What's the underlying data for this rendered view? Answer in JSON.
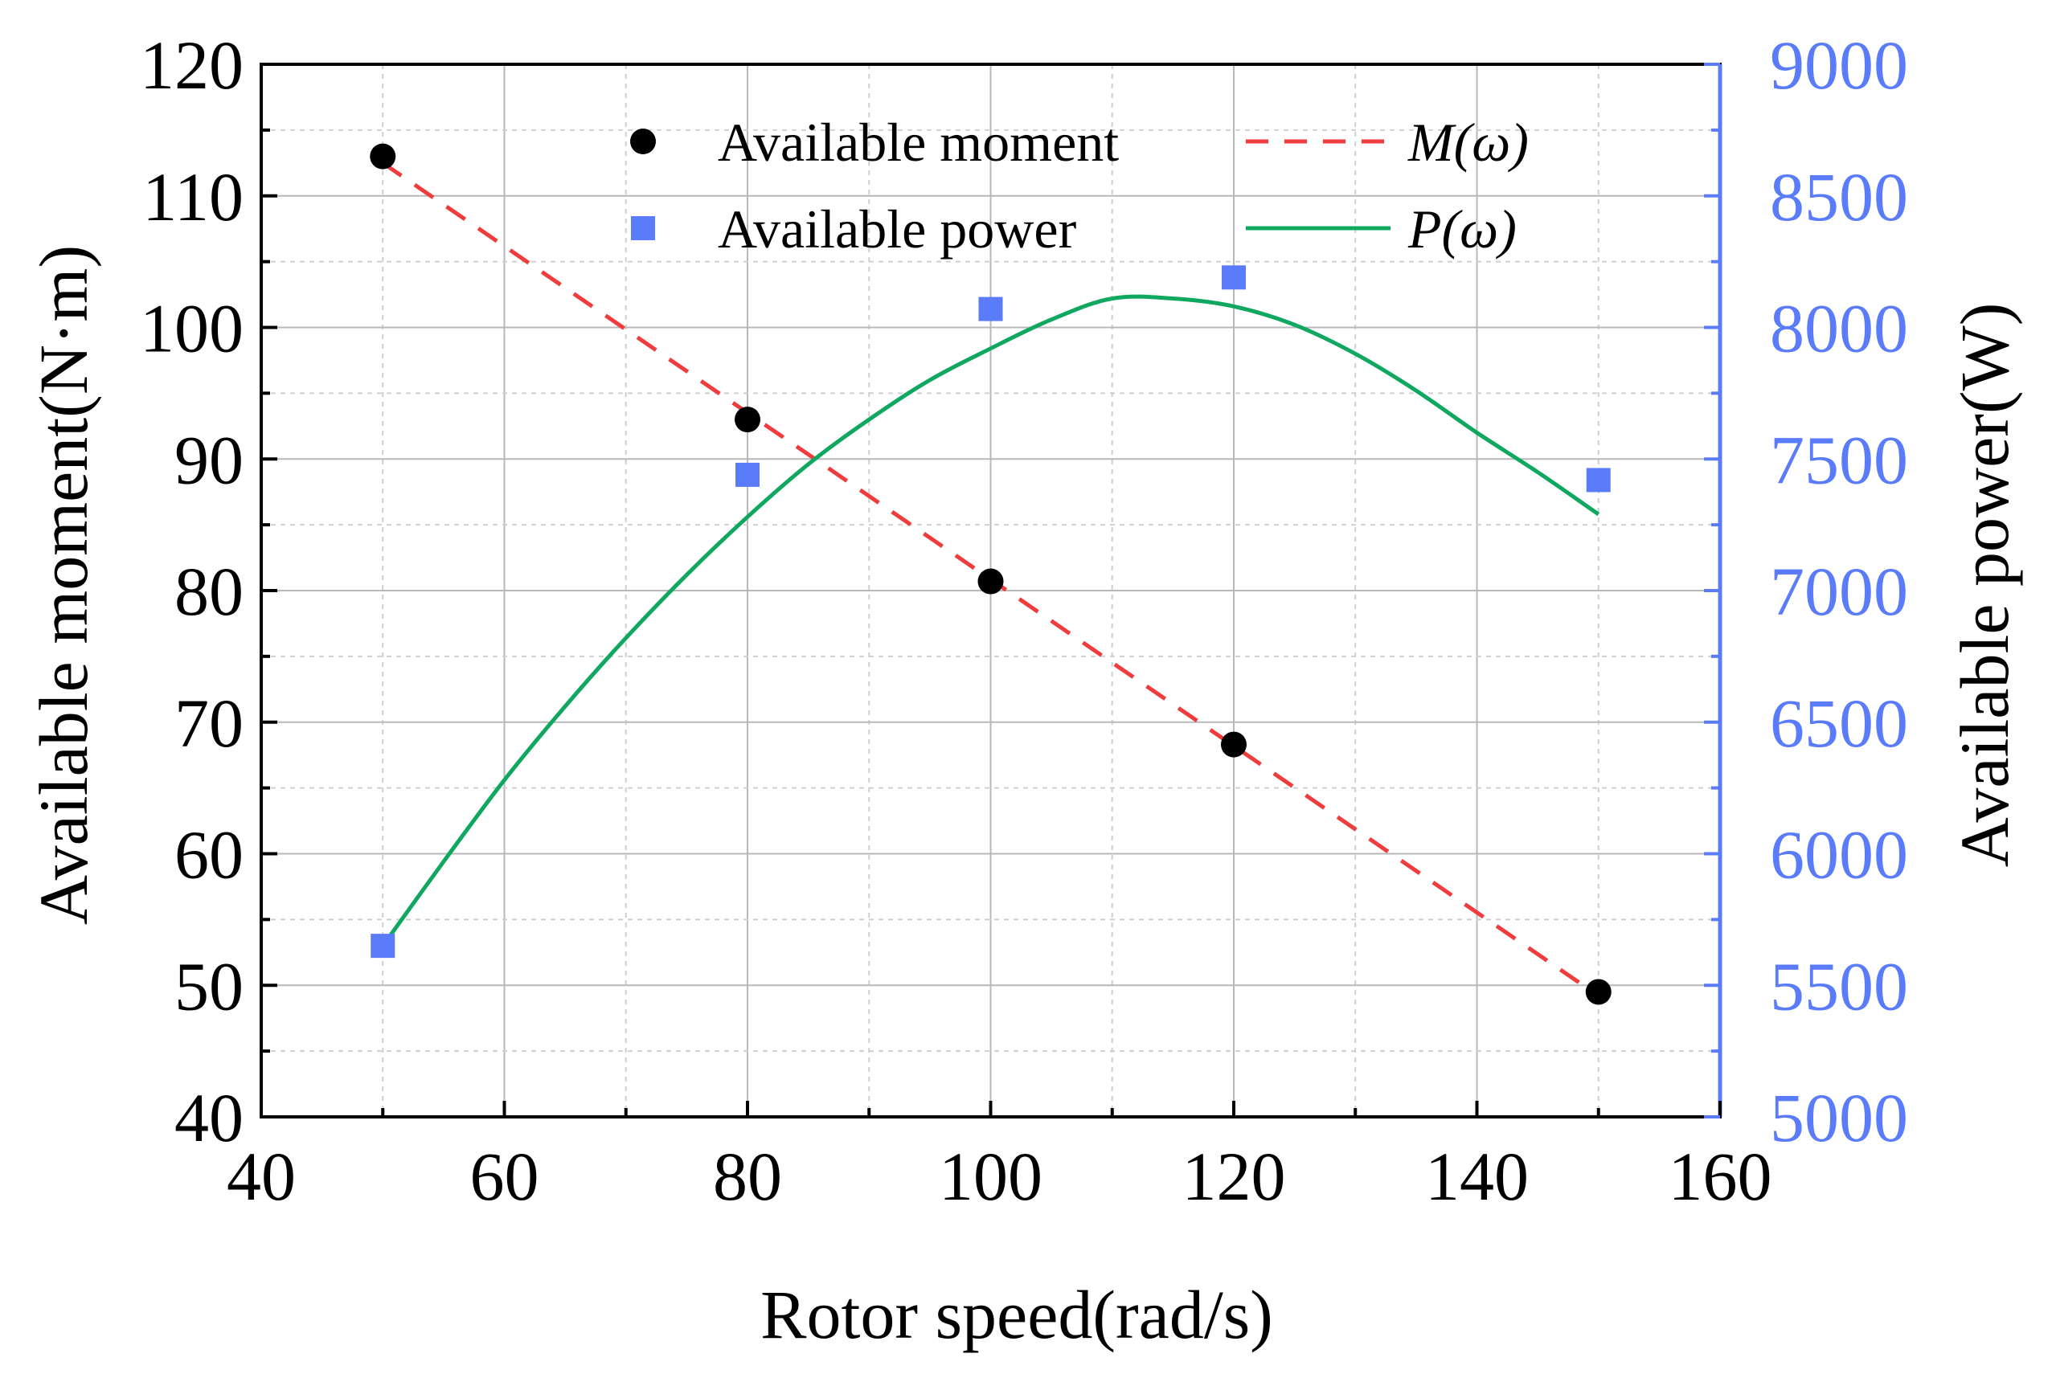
{
  "chart_data": {
    "type": "scatter",
    "title": "",
    "xlabel": "Rotor speed(rad/s)",
    "ylabel_left": "Available moment(N·m)",
    "ylabel_right": "Available power(W)",
    "x_range": [
      40,
      160
    ],
    "y_left_range": [
      40,
      120
    ],
    "y_right_range": [
      5000,
      9000
    ],
    "x_ticks": [
      40,
      60,
      80,
      100,
      120,
      140,
      160
    ],
    "y_left_ticks": [
      40,
      50,
      60,
      70,
      80,
      90,
      100,
      110,
      120
    ],
    "y_right_ticks": [
      5000,
      5500,
      6000,
      6500,
      7000,
      7500,
      8000,
      8500,
      9000
    ],
    "grid": true,
    "legend_position": "top",
    "right_axis_color": "#5b7cfa",
    "series": [
      {
        "name": "Available moment",
        "kind": "points",
        "marker": "circle",
        "axis": "left",
        "color": "#000000",
        "x": [
          50,
          80,
          100,
          120,
          150
        ],
        "y": [
          113,
          93,
          80.7,
          68.3,
          49.5
        ]
      },
      {
        "name": "Available power",
        "kind": "points",
        "marker": "square",
        "axis": "right",
        "color": "#5b7cfa",
        "x": [
          50,
          80,
          100,
          120,
          150
        ],
        "y": [
          5650,
          7440,
          8070,
          8190,
          7420
        ]
      },
      {
        "name": "M(ω)",
        "kind": "line",
        "dash": "dashed",
        "axis": "left",
        "color": "#f03c3c",
        "x": [
          50,
          150
        ],
        "y": [
          112.5,
          49.2
        ]
      },
      {
        "name": "P(ω)",
        "kind": "line",
        "dash": "solid",
        "axis": "right",
        "color": "#10a860",
        "x": [
          50,
          55,
          60,
          65,
          70,
          75,
          80,
          85,
          90,
          95,
          100,
          105,
          110,
          115,
          120,
          125,
          130,
          135,
          140,
          145,
          150
        ],
        "y": [
          5650,
          5970,
          6280,
          6560,
          6820,
          7060,
          7280,
          7480,
          7650,
          7800,
          7920,
          8030,
          8110,
          8110,
          8080,
          8010,
          7900,
          7760,
          7600,
          7450,
          7290
        ]
      }
    ]
  }
}
